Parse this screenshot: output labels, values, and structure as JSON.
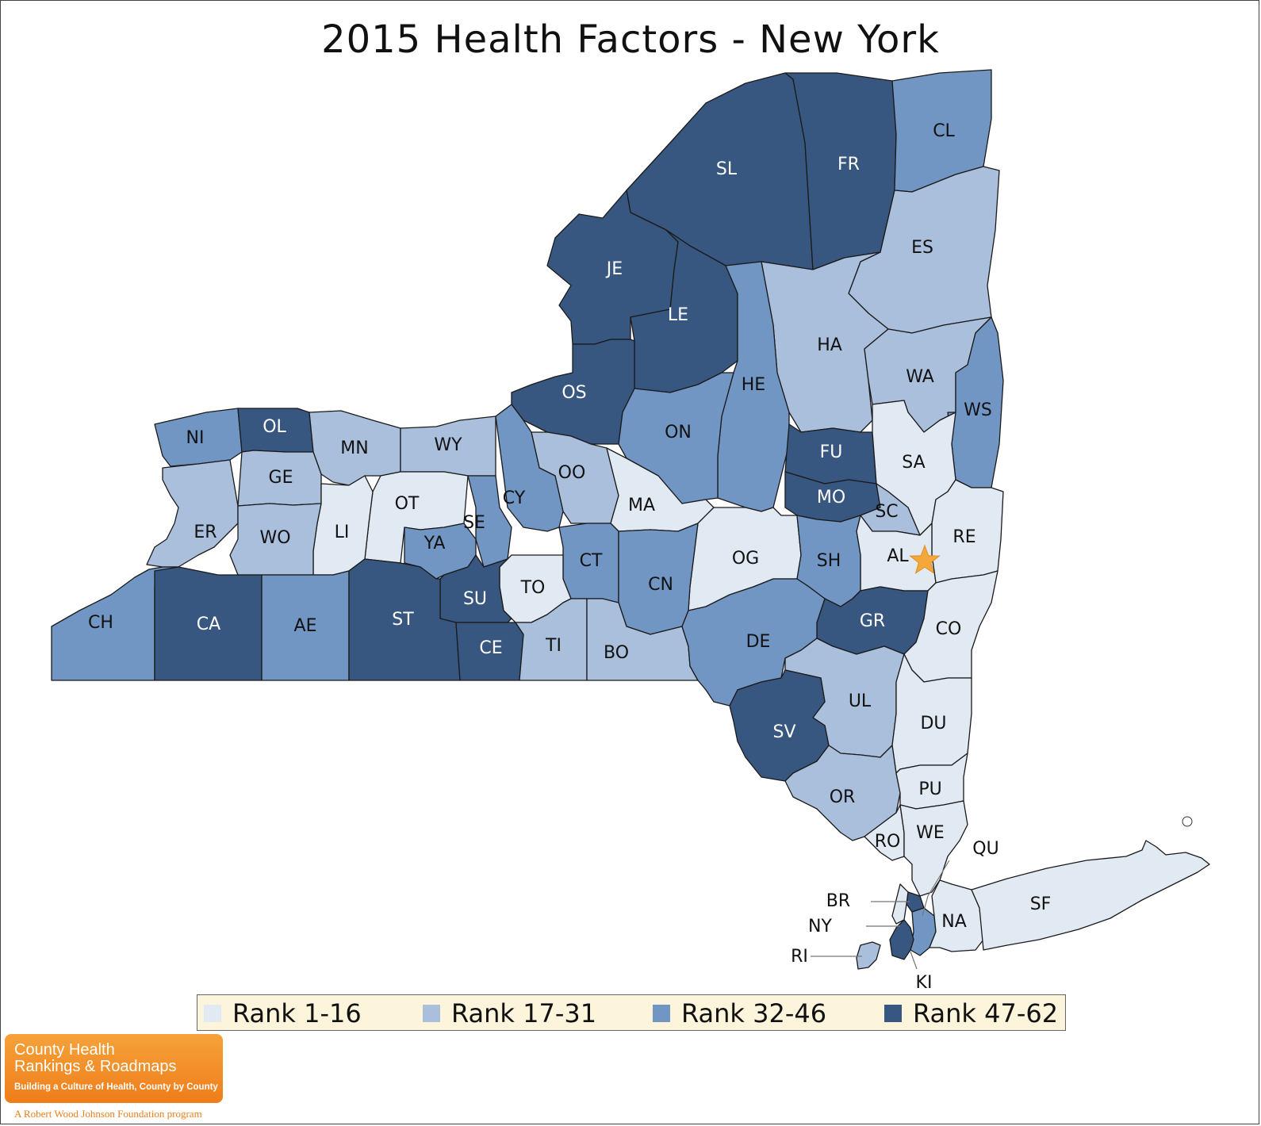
{
  "title": "2015 Health Factors - New York",
  "colors": {
    "rank_1_16": "#e1e9f3",
    "rank_17_31": "#a9bfdc",
    "rank_32_46": "#7196c4",
    "rank_47_62": "#375780",
    "star": "#f4a73b"
  },
  "legend": [
    {
      "label": "Rank 1-16",
      "tier": "rank_1_16"
    },
    {
      "label": "Rank 17-31",
      "tier": "rank_17_31"
    },
    {
      "label": "Rank 32-46",
      "tier": "rank_32_46"
    },
    {
      "label": "Rank 47-62",
      "tier": "rank_47_62"
    }
  ],
  "counties": [
    {
      "abbr": "SL",
      "tier": "rank_47_62"
    },
    {
      "abbr": "FR",
      "tier": "rank_47_62"
    },
    {
      "abbr": "CL",
      "tier": "rank_32_46"
    },
    {
      "abbr": "JE",
      "tier": "rank_47_62"
    },
    {
      "abbr": "LE",
      "tier": "rank_47_62"
    },
    {
      "abbr": "ES",
      "tier": "rank_17_31"
    },
    {
      "abbr": "HA",
      "tier": "rank_17_31"
    },
    {
      "abbr": "WA",
      "tier": "rank_17_31"
    },
    {
      "abbr": "OS",
      "tier": "rank_47_62"
    },
    {
      "abbr": "HE",
      "tier": "rank_32_46"
    },
    {
      "abbr": "WS",
      "tier": "rank_32_46"
    },
    {
      "abbr": "NI",
      "tier": "rank_32_46"
    },
    {
      "abbr": "OL",
      "tier": "rank_47_62"
    },
    {
      "abbr": "MN",
      "tier": "rank_17_31"
    },
    {
      "abbr": "WY",
      "tier": "rank_17_31"
    },
    {
      "abbr": "ON",
      "tier": "rank_32_46"
    },
    {
      "abbr": "FU",
      "tier": "rank_47_62"
    },
    {
      "abbr": "SA",
      "tier": "rank_1_16"
    },
    {
      "abbr": "GE",
      "tier": "rank_17_31"
    },
    {
      "abbr": "OO",
      "tier": "rank_17_31"
    },
    {
      "abbr": "CY",
      "tier": "rank_32_46"
    },
    {
      "abbr": "OT",
      "tier": "rank_1_16"
    },
    {
      "abbr": "MA",
      "tier": "rank_1_16"
    },
    {
      "abbr": "MO",
      "tier": "rank_47_62"
    },
    {
      "abbr": "SC",
      "tier": "rank_17_31"
    },
    {
      "abbr": "SE",
      "tier": "rank_32_46"
    },
    {
      "abbr": "ER",
      "tier": "rank_17_31"
    },
    {
      "abbr": "LI",
      "tier": "rank_1_16"
    },
    {
      "abbr": "WO",
      "tier": "rank_17_31"
    },
    {
      "abbr": "RE",
      "tier": "rank_1_16"
    },
    {
      "abbr": "YA",
      "tier": "rank_32_46"
    },
    {
      "abbr": "AL",
      "tier": "rank_1_16"
    },
    {
      "abbr": "OG",
      "tier": "rank_1_16"
    },
    {
      "abbr": "SH",
      "tier": "rank_32_46"
    },
    {
      "abbr": "CT",
      "tier": "rank_32_46"
    },
    {
      "abbr": "CN",
      "tier": "rank_32_46"
    },
    {
      "abbr": "TO",
      "tier": "rank_1_16"
    },
    {
      "abbr": "SU",
      "tier": "rank_47_62"
    },
    {
      "abbr": "CH",
      "tier": "rank_32_46"
    },
    {
      "abbr": "CA",
      "tier": "rank_47_62"
    },
    {
      "abbr": "AE",
      "tier": "rank_32_46"
    },
    {
      "abbr": "ST",
      "tier": "rank_47_62"
    },
    {
      "abbr": "GR",
      "tier": "rank_47_62"
    },
    {
      "abbr": "CO",
      "tier": "rank_1_16"
    },
    {
      "abbr": "CE",
      "tier": "rank_47_62"
    },
    {
      "abbr": "TI",
      "tier": "rank_17_31"
    },
    {
      "abbr": "BO",
      "tier": "rank_17_31"
    },
    {
      "abbr": "DE",
      "tier": "rank_32_46"
    },
    {
      "abbr": "UL",
      "tier": "rank_17_31"
    },
    {
      "abbr": "SV",
      "tier": "rank_47_62"
    },
    {
      "abbr": "DU",
      "tier": "rank_1_16"
    },
    {
      "abbr": "OR",
      "tier": "rank_17_31"
    },
    {
      "abbr": "PU",
      "tier": "rank_1_16"
    },
    {
      "abbr": "RO",
      "tier": "rank_1_16"
    },
    {
      "abbr": "WE",
      "tier": "rank_1_16"
    },
    {
      "abbr": "QU",
      "tier": "rank_32_46"
    },
    {
      "abbr": "BR",
      "tier": "rank_47_62"
    },
    {
      "abbr": "NY",
      "tier": "rank_1_16"
    },
    {
      "abbr": "RI",
      "tier": "rank_17_31"
    },
    {
      "abbr": "KI",
      "tier": "rank_47_62"
    },
    {
      "abbr": "NA",
      "tier": "rank_1_16"
    },
    {
      "abbr": "SF",
      "tier": "rank_1_16"
    }
  ],
  "logo": {
    "line1": "County Health",
    "line2": "Rankings & Roadmaps",
    "tagline": "Building a Culture of Health, County by County",
    "foundation": "A Robert Wood Johnson Foundation program"
  }
}
